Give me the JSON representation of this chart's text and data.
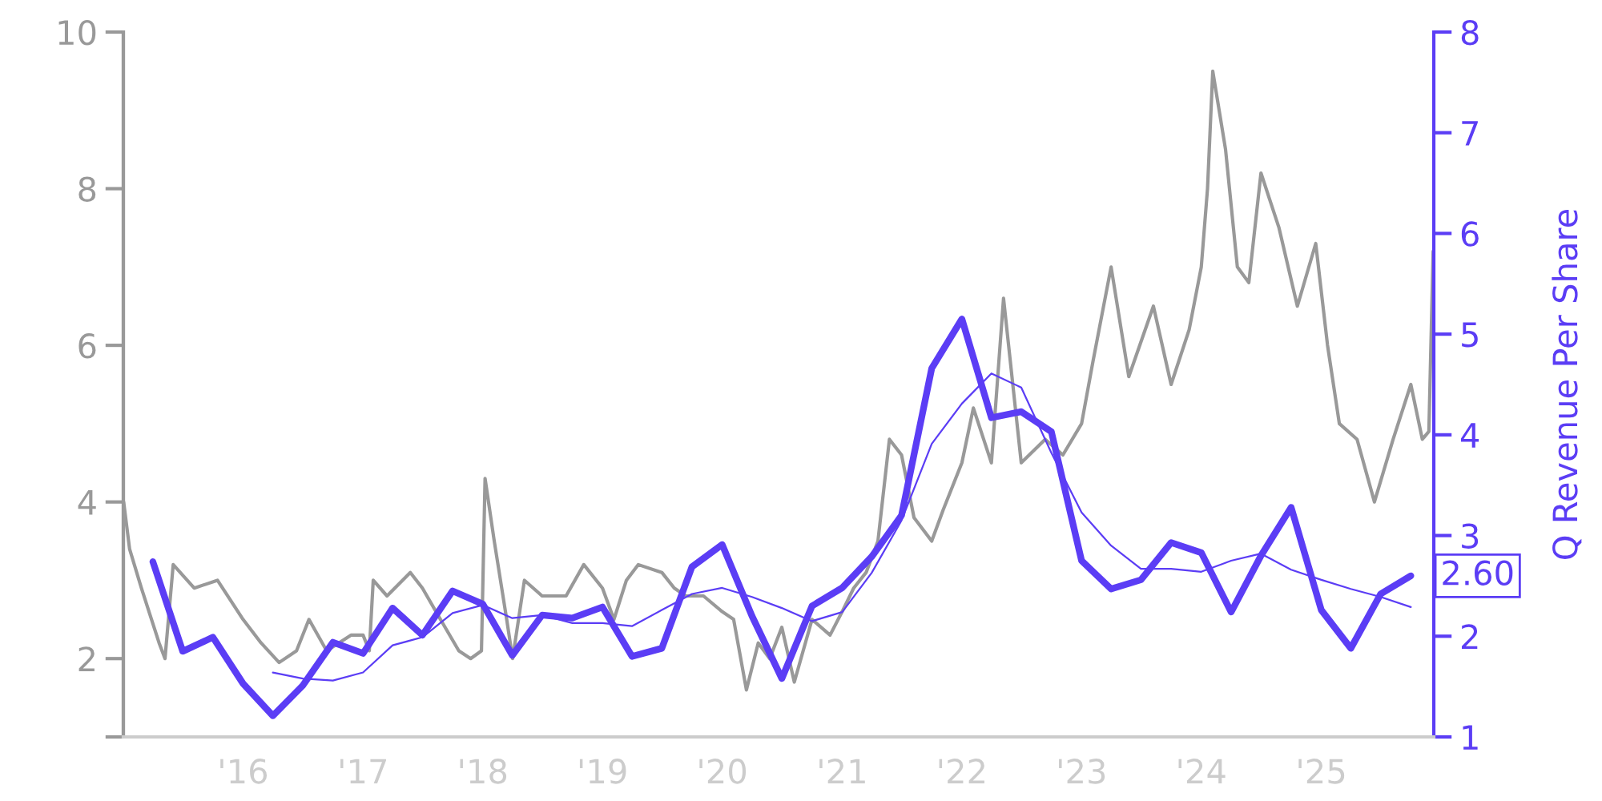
{
  "chart_data": {
    "type": "line",
    "y2label": "Q Revenue Per Share",
    "xlim": [
      "2015-01-01",
      "2025-12-10"
    ],
    "xticks": [
      {
        "value": "2015-01-01",
        "label": null
      },
      {
        "value": "2016-01-01",
        "label": "'16"
      },
      {
        "value": "2017-01-01",
        "label": "'17"
      },
      {
        "value": "2018-01-01",
        "label": "'18"
      },
      {
        "value": "2019-01-01",
        "label": "'19"
      },
      {
        "value": "2020-01-01",
        "label": "'20"
      },
      {
        "value": "2021-01-01",
        "label": "'21"
      },
      {
        "value": "2022-01-01",
        "label": "'22"
      },
      {
        "value": "2023-01-01",
        "label": "'23"
      },
      {
        "value": "2024-01-01",
        "label": "'24"
      },
      {
        "value": "2025-01-01",
        "label": "'25"
      }
    ],
    "ylim": [
      1,
      10
    ],
    "yticks": [
      {
        "value": 1,
        "label": null
      },
      2,
      4,
      6,
      8,
      10
    ],
    "y2lim": [
      1,
      8
    ],
    "y2ticks": [
      1,
      2,
      3,
      4,
      5,
      6,
      7,
      8
    ],
    "grid": false,
    "legend": false,
    "series": [
      {
        "color": "#999999",
        "x": [
          "2015-01-02",
          "2015-01-20",
          "2015-02-25",
          "2015-04-20",
          "2015-05-08",
          "2015-06-02",
          "2015-08-05",
          "2015-10-15",
          "2016-01-01",
          "2016-02-25",
          "2016-04-20",
          "2016-06-12",
          "2016-07-20",
          "2016-09-12",
          "2016-11-25",
          "2017-01-01",
          "2017-01-20",
          "2017-02-01",
          "2017-03-15",
          "2017-05-25",
          "2017-07-01",
          "2017-08-25",
          "2017-10-20",
          "2017-11-25",
          "2017-12-28",
          "2018-01-08",
          "2018-02-05",
          "2018-03-15",
          "2018-04-02",
          "2018-05-08",
          "2018-07-01",
          "2018-09-12",
          "2018-11-05",
          "2019-01-01",
          "2019-02-05",
          "2019-03-15",
          "2019-04-20",
          "2019-07-01",
          "2019-08-08",
          "2019-09-12",
          "2019-11-05",
          "2020-01-01",
          "2020-02-05",
          "2020-03-15",
          "2020-04-20",
          "2020-05-25",
          "2020-07-01",
          "2020-08-08",
          "2020-10-01",
          "2020-11-25",
          "2021-01-01",
          "2021-02-05",
          "2021-03-15",
          "2021-04-20",
          "2021-05-25",
          "2021-07-01",
          "2021-08-08",
          "2021-10-01",
          "2021-11-05",
          "2022-01-01",
          "2022-02-05",
          "2022-04-01",
          "2022-05-08",
          "2022-07-01",
          "2022-09-12",
          "2022-11-05",
          "2023-01-01",
          "2023-02-05",
          "2023-04-01",
          "2023-05-25",
          "2023-08-08",
          "2023-10-01",
          "2023-11-25",
          "2024-01-01",
          "2024-01-20",
          "2024-02-05",
          "2024-03-15",
          "2024-04-20",
          "2024-05-25",
          "2024-07-01",
          "2024-08-25",
          "2024-10-20",
          "2024-12-15",
          "2025-01-20",
          "2025-02-25",
          "2025-04-20",
          "2025-06-12",
          "2025-08-08",
          "2025-10-01",
          "2025-11-05",
          "2025-11-25",
          "2025-12-08"
        ],
        "values": [
          4.0,
          3.4,
          2.9,
          2.2,
          2.0,
          3.2,
          2.9,
          3.0,
          2.5,
          2.2,
          1.95,
          2.1,
          2.5,
          2.1,
          2.3,
          2.3,
          2.1,
          3.0,
          2.8,
          3.1,
          2.9,
          2.5,
          2.1,
          2.0,
          2.1,
          4.3,
          3.5,
          2.5,
          2.0,
          3.0,
          2.8,
          2.8,
          3.2,
          2.9,
          2.5,
          3.0,
          3.2,
          3.1,
          2.9,
          2.8,
          2.8,
          2.6,
          2.5,
          1.6,
          2.2,
          2.0,
          2.4,
          1.7,
          2.5,
          2.3,
          2.6,
          2.9,
          3.1,
          3.5,
          4.8,
          4.6,
          3.8,
          3.5,
          3.9,
          4.5,
          5.2,
          4.5,
          6.6,
          4.5,
          4.8,
          4.6,
          5.0,
          5.8,
          7.0,
          5.6,
          6.5,
          5.5,
          6.2,
          7.0,
          8.0,
          9.5,
          8.5,
          7.0,
          6.8,
          8.2,
          7.5,
          6.5,
          7.3,
          6.0,
          5.0,
          4.8,
          4.0,
          4.8,
          5.5,
          4.8,
          4.9,
          7.2
        ]
      },
      {
        "color": "#5b3df5",
        "axis": "y2",
        "x": [
          "2015-04",
          "2015-07",
          "2015-10",
          "2016-01",
          "2016-04",
          "2016-07",
          "2016-10",
          "2017-01",
          "2017-04",
          "2017-07",
          "2017-10",
          "2018-01",
          "2018-04",
          "2018-07",
          "2018-10",
          "2019-01",
          "2019-04",
          "2019-07",
          "2019-10",
          "2020-01",
          "2020-04",
          "2020-07",
          "2020-10",
          "2021-01",
          "2021-04",
          "2021-07",
          "2021-10",
          "2022-01",
          "2022-04",
          "2022-07",
          "2022-10",
          "2023-01",
          "2023-04",
          "2023-07",
          "2023-10",
          "2024-01",
          "2024-04",
          "2024-07",
          "2024-10",
          "2025-01",
          "2025-04",
          "2025-07",
          "2025-10"
        ],
        "values": [
          2.74,
          1.85,
          1.99,
          1.53,
          1.21,
          1.51,
          1.94,
          1.83,
          2.28,
          2.01,
          2.45,
          2.32,
          1.81,
          2.21,
          2.18,
          2.29,
          1.8,
          1.88,
          2.69,
          2.91,
          2.2,
          1.58,
          2.3,
          2.48,
          2.79,
          3.2,
          4.66,
          5.15,
          4.17,
          4.23,
          4.03,
          2.75,
          2.47,
          2.56,
          2.93,
          2.83,
          2.24,
          2.8,
          3.28,
          2.26,
          1.88,
          2.42,
          2.6
        ],
        "value_labels": [
          null,
          null,
          null,
          null,
          null,
          null,
          null,
          null,
          null,
          null,
          null,
          null,
          null,
          null,
          null,
          null,
          null,
          null,
          null,
          null,
          null,
          null,
          null,
          null,
          null,
          null,
          null,
          null,
          null,
          null,
          null,
          null,
          null,
          null,
          null,
          null,
          null,
          null,
          null,
          null,
          null,
          null,
          "2.60"
        ]
      },
      {
        "color": "#5b3df5",
        "axis": "y2",
        "x": [
          "2016-04",
          "2016-07",
          "2016-10",
          "2017-01",
          "2017-04",
          "2017-07",
          "2017-10",
          "2018-01",
          "2018-04",
          "2018-07",
          "2018-10",
          "2019-01",
          "2019-04",
          "2019-07",
          "2019-10",
          "2020-01",
          "2020-04",
          "2020-07",
          "2020-10",
          "2021-01",
          "2021-04",
          "2021-07",
          "2021-10",
          "2022-01",
          "2022-04",
          "2022-07",
          "2022-10",
          "2023-01",
          "2023-04",
          "2023-07",
          "2023-10",
          "2024-01",
          "2024-04",
          "2024-07",
          "2024-10",
          "2025-01",
          "2025-04",
          "2025-07",
          "2025-10"
        ],
        "values": [
          1.64,
          1.58,
          1.56,
          1.64,
          1.91,
          1.99,
          2.23,
          2.31,
          2.18,
          2.21,
          2.13,
          2.13,
          2.1,
          2.26,
          2.42,
          2.48,
          2.39,
          2.28,
          2.15,
          2.24,
          2.63,
          3.15,
          3.91,
          4.31,
          4.61,
          4.47,
          3.82,
          3.23,
          2.9,
          2.67,
          2.67,
          2.64,
          2.75,
          2.82,
          2.66,
          2.56,
          2.47,
          2.39,
          2.29
        ]
      }
    ]
  }
}
